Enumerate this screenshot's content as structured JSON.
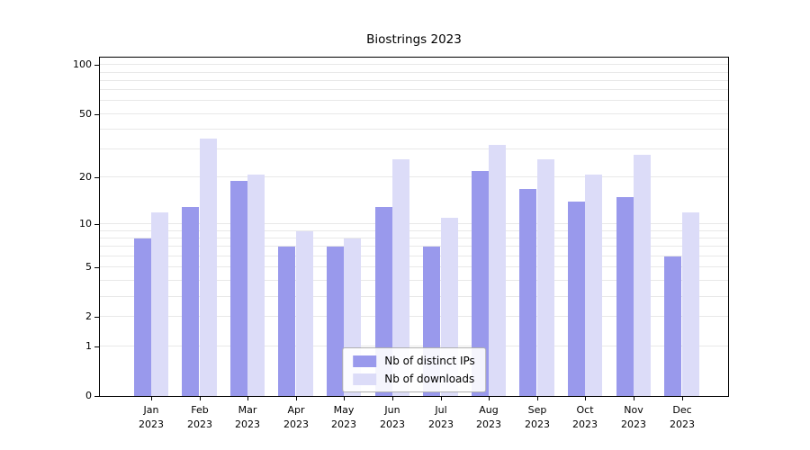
{
  "title": "Biostrings 2023",
  "chart_data": {
    "type": "bar",
    "scale": "log1p",
    "title": "Biostrings 2023",
    "categories": [
      "Jan",
      "Feb",
      "Mar",
      "Apr",
      "May",
      "Jun",
      "Jul",
      "Aug",
      "Sep",
      "Oct",
      "Nov",
      "Dec"
    ],
    "year_label": "2023",
    "series": [
      {
        "name": "Nb of distinct IPs",
        "color": "#9999ec",
        "values": [
          8,
          13,
          19,
          7,
          7,
          13,
          7,
          22,
          17,
          14,
          15,
          6
        ]
      },
      {
        "name": "Nb of downloads",
        "color": "#dcdcf8",
        "values": [
          12,
          35,
          21,
          9,
          8,
          26,
          11,
          32,
          26,
          21,
          28,
          12
        ]
      }
    ],
    "yticks": [
      0,
      1,
      2,
      5,
      10,
      20,
      50,
      100
    ],
    "grid_values": [
      1,
      2,
      3,
      4,
      5,
      6,
      7,
      8,
      9,
      10,
      20,
      30,
      40,
      50,
      60,
      70,
      80,
      90,
      100
    ],
    "ylim": [
      0,
      111
    ],
    "grid": "on",
    "legend_position": "bottom-center"
  }
}
